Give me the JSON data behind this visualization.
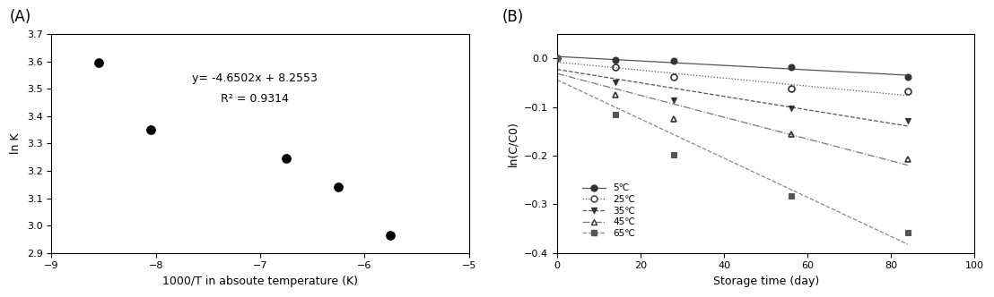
{
  "panel_A": {
    "title": "(A)",
    "xlabel": "1000/T in absoute temperature (K)",
    "ylabel": "ln K",
    "xlim": [
      -9.0,
      -5.0
    ],
    "ylim": [
      2.9,
      3.7
    ],
    "xticks": [
      -9,
      -8,
      -7,
      -6,
      -5
    ],
    "yticks": [
      2.9,
      3.0,
      3.1,
      3.2,
      3.3,
      3.4,
      3.5,
      3.6,
      3.7
    ],
    "data_x": [
      -8.55,
      -8.05,
      -6.75,
      -6.25,
      -5.75
    ],
    "data_y": [
      3.595,
      3.35,
      3.245,
      3.14,
      2.965
    ],
    "fit_slope": -4.6502,
    "fit_intercept": 8.2553,
    "equation_text": "y= -4.6502x + 8.2553",
    "r2_text": "R² = 0.9314",
    "eq_x": -7.05,
    "eq_y": 3.5,
    "fit_xmin": -8.8,
    "fit_xmax": -5.6
  },
  "panel_B": {
    "title": "(B)",
    "xlabel": "Storage time (day)",
    "ylabel": "ln(C/C0)",
    "xlim": [
      0,
      100
    ],
    "ylim": [
      -0.4,
      0.05
    ],
    "xticks": [
      0,
      20,
      40,
      60,
      80,
      100
    ],
    "yticks": [
      -0.4,
      -0.3,
      -0.2,
      -0.1,
      0.0
    ],
    "series": [
      {
        "label": "5℃",
        "x": [
          0,
          14,
          28,
          56,
          84
        ],
        "y": [
          0.0,
          -0.002,
          -0.004,
          -0.018,
          -0.038
        ],
        "linestyle": "solid",
        "marker": "o",
        "fillstyle": "full",
        "color": "#333333",
        "linecolor": "#555555"
      },
      {
        "label": "25℃",
        "x": [
          0,
          14,
          28,
          56,
          84
        ],
        "y": [
          0.0,
          -0.018,
          -0.038,
          -0.062,
          -0.068
        ],
        "linestyle": "dotted",
        "marker": "o",
        "fillstyle": "none",
        "color": "#333333",
        "linecolor": "#555555"
      },
      {
        "label": "35℃",
        "x": [
          0,
          14,
          28,
          56,
          84
        ],
        "y": [
          0.0,
          -0.048,
          -0.085,
          -0.103,
          -0.128
        ],
        "linestyle": "dashed",
        "marker": "v",
        "fillstyle": "full",
        "color": "#333333",
        "linecolor": "#555555"
      },
      {
        "label": "45℃",
        "x": [
          0,
          14,
          28,
          56,
          84
        ],
        "y": [
          0.0,
          -0.075,
          -0.125,
          -0.155,
          -0.208
        ],
        "linestyle": "dashdot",
        "marker": "^",
        "fillstyle": "none",
        "color": "#333333",
        "linecolor": "#777777"
      },
      {
        "label": "65℃",
        "x": [
          0,
          14,
          28,
          56,
          84
        ],
        "y": [
          0.0,
          -0.115,
          -0.198,
          -0.282,
          -0.358
        ],
        "linestyle": "dashed",
        "marker": "s",
        "fillstyle": "full",
        "color": "#555555",
        "linecolor": "#888888"
      }
    ]
  }
}
